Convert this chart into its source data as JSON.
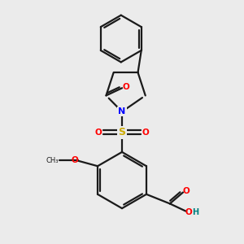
{
  "background_color": "#ebebeb",
  "bond_color": "#1a1a1a",
  "N_color": "#0000ff",
  "O_color": "#ff0000",
  "S_color": "#ccaa00",
  "H_color": "#008080",
  "line_width": 1.6,
  "figsize": [
    3.0,
    3.0
  ],
  "dpi": 100,
  "xlim": [
    0.3,
    2.7
  ],
  "ylim": [
    0.2,
    2.8
  ]
}
